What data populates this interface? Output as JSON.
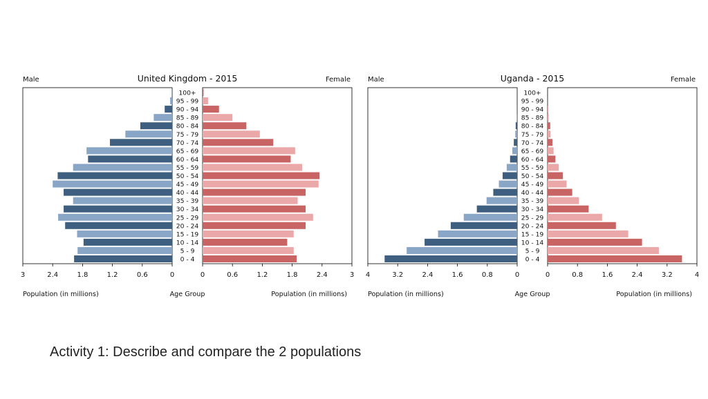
{
  "caption": "Activity 1: Describe and compare the 2 populations",
  "chart_data": [
    {
      "type": "population_pyramid",
      "title": "United Kingdom - 2015",
      "left_label": "Male",
      "right_label": "Female",
      "xlabel_left": "Population (in millions)",
      "xlabel_center": "Age Group",
      "xlabel_right": "Population (in millions)",
      "xlim": [
        0,
        3
      ],
      "left_ticks": [
        "3",
        "2.4",
        "1.8",
        "1.2",
        "0.6",
        "0"
      ],
      "right_ticks": [
        "0",
        "0.6",
        "1.2",
        "1.8",
        "2.4",
        "3"
      ],
      "categories": [
        "0 - 4",
        "5 - 9",
        "10 - 14",
        "15 - 19",
        "20 - 24",
        "25 - 29",
        "30 - 34",
        "35 - 39",
        "40 - 44",
        "45 - 49",
        "50 - 54",
        "55 - 59",
        "60 - 64",
        "65 - 69",
        "70 - 74",
        "75 - 79",
        "80 - 84",
        "85 - 89",
        "90 - 94",
        "95 - 99",
        "100+"
      ],
      "male": [
        1.97,
        1.9,
        1.78,
        1.91,
        2.15,
        2.29,
        2.18,
        1.99,
        2.18,
        2.4,
        2.3,
        1.99,
        1.69,
        1.72,
        1.25,
        0.94,
        0.64,
        0.37,
        0.15,
        0.04,
        0.005
      ],
      "female": [
        1.89,
        1.83,
        1.7,
        1.83,
        2.07,
        2.22,
        2.07,
        1.91,
        2.07,
        2.33,
        2.35,
        2.0,
        1.77,
        1.86,
        1.42,
        1.15,
        0.88,
        0.6,
        0.33,
        0.11,
        0.02
      ]
    },
    {
      "type": "population_pyramid",
      "title": "Uganda - 2015",
      "left_label": "Male",
      "right_label": "Female",
      "xlabel_left": "Population (in millions)",
      "xlabel_center": "Age Group",
      "xlabel_right": "Population (in millions)",
      "xlim": [
        0,
        4
      ],
      "left_ticks": [
        "4",
        "3.2",
        "2.4",
        "1.6",
        "0.8",
        "0"
      ],
      "right_ticks": [
        "0",
        "0.8",
        "1.6",
        "2.4",
        "3.2",
        "4"
      ],
      "categories": [
        "0 - 4",
        "5 - 9",
        "10 - 14",
        "15 - 19",
        "20 - 24",
        "25 - 29",
        "30 - 34",
        "35 - 39",
        "40 - 44",
        "45 - 49",
        "50 - 54",
        "55 - 59",
        "60 - 64",
        "65 - 69",
        "70 - 74",
        "75 - 79",
        "80 - 84",
        "85 - 89",
        "90 - 94",
        "95 - 99",
        "100+"
      ],
      "male": [
        3.55,
        2.96,
        2.48,
        2.12,
        1.78,
        1.43,
        1.08,
        0.82,
        0.64,
        0.49,
        0.39,
        0.28,
        0.19,
        0.13,
        0.09,
        0.05,
        0.04,
        0.015,
        0.005,
        0.0,
        0.0
      ],
      "female": [
        3.6,
        2.98,
        2.53,
        2.16,
        1.83,
        1.46,
        1.1,
        0.84,
        0.66,
        0.51,
        0.41,
        0.3,
        0.21,
        0.16,
        0.13,
        0.08,
        0.07,
        0.03,
        0.01,
        0.0,
        0.0
      ]
    }
  ],
  "colors": {
    "male_dark": "#3f5f80",
    "male_light": "#8aa6c6",
    "female_dark": "#c86464",
    "female_light": "#eba8a8",
    "frame": "#000000",
    "text": "#111111"
  }
}
